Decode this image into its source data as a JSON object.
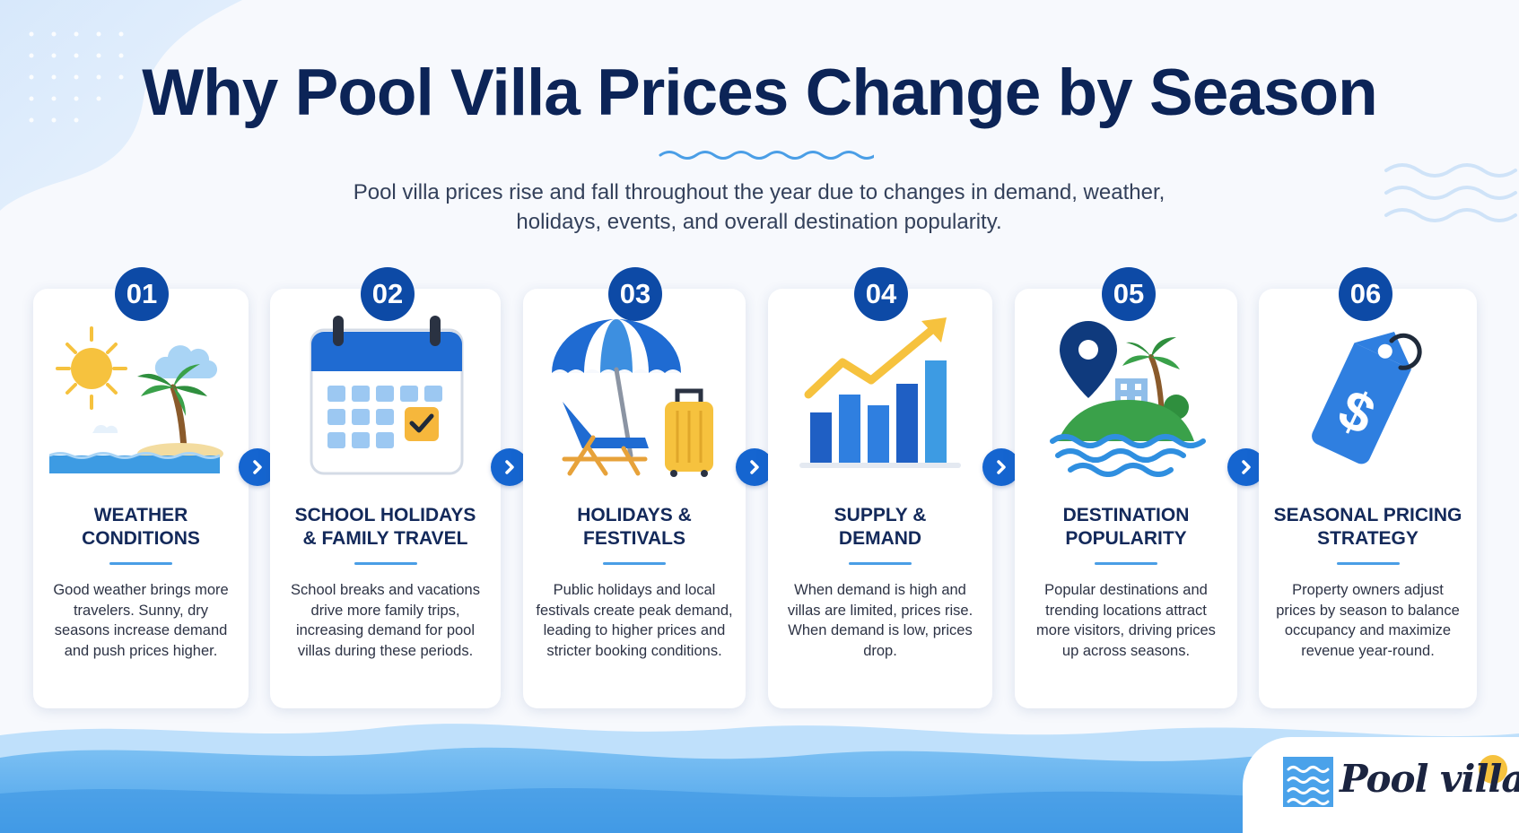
{
  "title": "Why Pool Villa Prices Change by Season",
  "subtitle": "Pool villa prices rise and fall throughout the year due to changes in demand, weather, holidays, events, and overall destination popularity.",
  "colors": {
    "navy": "#0c2457",
    "badge": "#0d4aa6",
    "accent_blue": "#1565d0",
    "light_blue": "#4a9ee6",
    "wave_blue": "#5fb0ee",
    "sun_yellow": "#f6c23e",
    "palm_green": "#3aa14a"
  },
  "cards": [
    {
      "number": "01",
      "title_line1": "WEATHER",
      "title_line2": "CONDITIONS",
      "text": "Good weather brings more travelers. Sunny, dry seasons increase demand and push prices higher.",
      "icon": "sun-island-icon"
    },
    {
      "number": "02",
      "title_line1": "SCHOOL HOLIDAYS",
      "title_line2": "& FAMILY TRAVEL",
      "text": "School breaks and vacations drive more family trips, increasing demand for pool villas during these periods.",
      "icon": "calendar-icon"
    },
    {
      "number": "03",
      "title_line1": "HOLIDAYS &",
      "title_line2": "FESTIVALS",
      "text": "Public holidays and local festivals create peak demand, leading to higher prices and stricter booking conditions.",
      "icon": "beach-umbrella-suitcase-icon"
    },
    {
      "number": "04",
      "title_line1": "SUPPLY &",
      "title_line2": "DEMAND",
      "text": "When demand is high and villas are limited, prices rise. When demand is low, prices drop.",
      "icon": "growth-chart-icon"
    },
    {
      "number": "05",
      "title_line1": "DESTINATION",
      "title_line2": "POPULARITY",
      "text": "Popular destinations and trending locations attract more visitors, driving prices up across seasons.",
      "icon": "map-pin-island-icon"
    },
    {
      "number": "06",
      "title_line1": "SEASONAL PRICING",
      "title_line2": "STRATEGY",
      "text": "Property owners adjust prices by season to balance occupancy and maximize revenue year-round.",
      "icon": "price-tag-icon"
    }
  ],
  "logo": {
    "text": "Pool villa"
  }
}
